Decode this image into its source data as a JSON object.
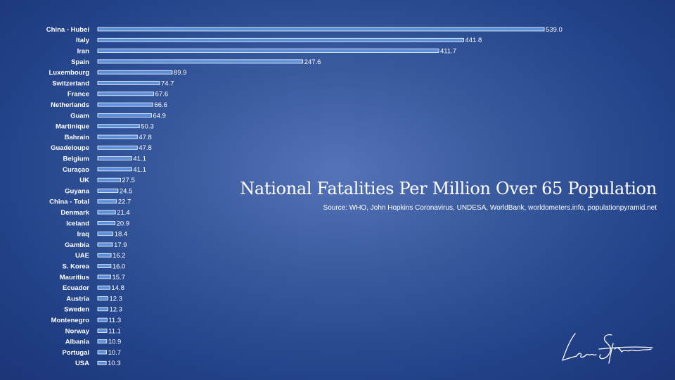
{
  "chart_data": {
    "type": "bar",
    "orientation": "horizontal",
    "title": "National Fatalities Per Million Over 65 Population",
    "subtitle": "Source: WHO, John Hopkins Coronavirus, UNDESA, WorldBank, worldometers.info, populationpyramid.net",
    "categories": [
      "China - Hubei",
      "Italy",
      "Iran",
      "Spain",
      "Luxembourg",
      "Switzerland",
      "France",
      "Netherlands",
      "Guam",
      "Martinique",
      "Bahrain",
      "Guadeloupe",
      "Belgium",
      "Curaçao",
      "UK",
      "Guyana",
      "China - Total",
      "Denmark",
      "Iceland",
      "Iraq",
      "Gambia",
      "UAE",
      "S. Korea",
      "Mauritius",
      "Ecuador",
      "Austria",
      "Sweden",
      "Montenegro",
      "Norway",
      "Albania",
      "Portugal",
      "USA"
    ],
    "values": [
      539.0,
      441.8,
      411.7,
      247.6,
      89.9,
      74.7,
      67.6,
      66.6,
      64.9,
      50.3,
      47.8,
      47.8,
      41.1,
      41.1,
      27.5,
      24.5,
      22.7,
      21.4,
      20.9,
      18.4,
      17.9,
      16.2,
      16.0,
      15.7,
      14.8,
      12.3,
      12.3,
      11.3,
      11.1,
      10.9,
      10.7,
      10.3
    ],
    "value_labels": [
      "539.0",
      "441.8",
      "411.7",
      "247.6",
      "89.9",
      "74.7",
      "67.6",
      "66.6",
      "64.9",
      "50.3",
      "47.8",
      "47.8",
      "41.1",
      "41.1",
      "27.5",
      "24.5",
      "22.7",
      "21.4",
      "20.9",
      "18.4",
      "17.9",
      "16.2",
      "16.0",
      "15.7",
      "14.8",
      "12.3",
      "12.3",
      "11.3",
      "11.1",
      "10.9",
      "10.7",
      "10.3"
    ],
    "xlim": [
      0,
      539.0
    ],
    "grid": false,
    "legend": "none",
    "bar_color": "#5b8fd9",
    "bar_outline": "#ffffff"
  },
  "colors": {
    "background": "#2f4f95",
    "text": "#ffffff"
  }
}
